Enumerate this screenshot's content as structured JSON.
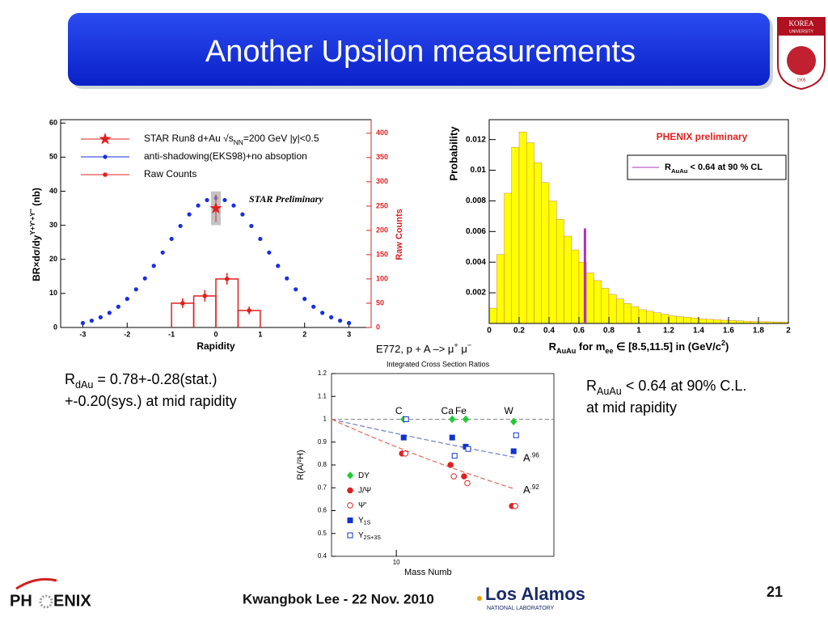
{
  "header": {
    "title": "Another Upsilon measurements"
  },
  "korea_logo": {
    "name": "KOREA",
    "subtitle": "UNIVERSITY",
    "year": "1905"
  },
  "star_plot": {
    "legend": {
      "star": {
        "base": "STAR Run8 d+Au √s",
        "sub": "NN",
        "rest": "=200 GeV  |y|<0.5"
      },
      "model": "anti-shadowing(EKS98)+no absoption",
      "raw": "Raw Counts"
    },
    "annotation": "STAR Preliminary",
    "xlabel": "Rapidity",
    "ylabel": {
      "base": "BR×dσ/dy",
      "sup": "Υ+Υ'+Υ''",
      "rest": " (nb)"
    },
    "y2label": "Raw Counts",
    "xlim": [
      -3.5,
      3.5
    ],
    "ylim": [
      0,
      61
    ],
    "y2lim": [
      0,
      428
    ],
    "xticks": [
      -3,
      -2,
      -1,
      0,
      1,
      2,
      3
    ],
    "yticks": [
      0,
      10,
      20,
      30,
      40,
      50,
      60
    ],
    "y2ticks": [
      0,
      50,
      100,
      150,
      200,
      250,
      300,
      350,
      400
    ],
    "model": {
      "color": "#1a2ee0",
      "x": [
        -3,
        -2.8,
        -2.6,
        -2.4,
        -2.2,
        -2,
        -1.8,
        -1.6,
        -1.4,
        -1.2,
        -1,
        -0.8,
        -0.6,
        -0.4,
        -0.2,
        0,
        0.2,
        0.4,
        0.6,
        0.8,
        1,
        1.2,
        1.4,
        1.6,
        1.8,
        2,
        2.2,
        2.4,
        2.6,
        2.8,
        3
      ],
      "values": [
        1.3,
        2.0,
        3.0,
        4.3,
        6.1,
        8.4,
        11.2,
        14.4,
        18.1,
        22.0,
        26.0,
        29.8,
        33.2,
        35.8,
        37.4,
        38,
        37.4,
        35.8,
        33.2,
        29.8,
        26.0,
        22.0,
        18.1,
        14.4,
        11.2,
        8.4,
        6.1,
        4.3,
        3.0,
        2.0,
        1.3
      ]
    },
    "raw_counts": {
      "color": "#e02020",
      "bins": [
        -1,
        -0.5,
        0,
        0.5,
        1
      ],
      "counts": [
        50,
        65,
        100,
        35
      ],
      "errors": [
        10,
        12,
        12,
        8
      ]
    },
    "star_point": {
      "x": 0,
      "value": 35,
      "error": 4
    }
  },
  "phenix_plot": {
    "title": "PHENIX preliminary",
    "legend": {
      "base": "R",
      "sub": "AuAu",
      "rest": " < 0.64 at 90 % CL"
    },
    "ylabel": "Probability",
    "xlabel": {
      "a": "R",
      "a_sub": "AuAu",
      "b": " for m",
      "b_sub": "ee",
      "c": " ∈ [8.5,11.5] in (GeV/c",
      "c_sup": "2",
      "d": ")"
    },
    "xlim": [
      0,
      2
    ],
    "ylim": [
      0,
      0.0133
    ],
    "xticks": [
      0,
      0.2,
      0.4,
      0.6,
      0.8,
      1,
      1.2,
      1.4,
      1.6,
      1.8,
      2
    ],
    "yticks": [
      0.002,
      0.004,
      0.006,
      0.008,
      0.01,
      0.012
    ],
    "color": "#ffff00",
    "bins": [
      0,
      0.05,
      0.1,
      0.15,
      0.2,
      0.25,
      0.3,
      0.35,
      0.4,
      0.45,
      0.5,
      0.55,
      0.6,
      0.65,
      0.7,
      0.75,
      0.8,
      0.85,
      0.9,
      0.95,
      1,
      1.05,
      1.1,
      1.15,
      1.2,
      1.25,
      1.3,
      1.35,
      1.4,
      1.45,
      1.5,
      1.55,
      1.6,
      1.65,
      1.7,
      1.75,
      1.8,
      1.85,
      1.9,
      1.95,
      2
    ],
    "counts": [
      0.001,
      0.0045,
      0.0085,
      0.0115,
      0.0125,
      0.0118,
      0.0105,
      0.0092,
      0.008,
      0.0068,
      0.0057,
      0.0048,
      0.004,
      0.0033,
      0.0028,
      0.0023,
      0.0019,
      0.0016,
      0.0013,
      0.0011,
      0.0009,
      0.0008,
      0.0007,
      0.0006,
      0.0005,
      0.00045,
      0.0004,
      0.00035,
      0.0003,
      0.00027,
      0.00024,
      0.00021,
      0.00019,
      0.00017,
      0.00015,
      0.00013,
      0.00012,
      0.00011,
      0.0001,
      9e-05
    ],
    "limit": {
      "x": 0.64,
      "height": 0.0062,
      "color": "#b030c0"
    }
  },
  "e772_plot": {
    "title": {
      "a": "E772,  p + A –> μ",
      "s1": "+",
      "b": " μ",
      "s2": "−"
    },
    "subtitle": "Integrated Cross Section Ratios",
    "ylabel": "R(A/²H)",
    "xlabel": "Mass Numb",
    "xlim": [
      2,
      500
    ],
    "log_x": true,
    "ylim": [
      0.4,
      1.2
    ],
    "yticks": [
      0.4,
      0.5,
      0.6,
      0.7,
      0.8,
      0.9,
      1,
      1.1,
      1.2
    ],
    "xticks": [
      10
    ],
    "reference": 1,
    "elements": [
      {
        "label": "C",
        "A": 12
      },
      {
        "label": "Ca",
        "A": 40
      },
      {
        "label": "Fe",
        "A": 56
      },
      {
        "label": "W",
        "A": 184
      }
    ],
    "series": [
      {
        "name": "DY",
        "color": "#22cc33",
        "marker": "diamond",
        "filled": true,
        "x": [
          12,
          40,
          56,
          184
        ],
        "values": [
          1,
          1,
          1,
          0.99
        ]
      },
      {
        "name": "J/Ψ",
        "color": "#dd2222",
        "marker": "circle",
        "filled": true,
        "x": [
          12,
          40,
          56,
          184
        ],
        "values": [
          0.85,
          0.8,
          0.75,
          0.62
        ]
      },
      {
        "name": "Ψ'",
        "color": "#dd2222",
        "marker": "circle",
        "filled": false,
        "x": [
          12,
          40,
          56,
          184
        ],
        "values": [
          0.85,
          0.75,
          0.72,
          0.62
        ]
      },
      {
        "name": "Υ",
        "name_sub": "1S",
        "color": "#1133cc",
        "marker": "square",
        "filled": true,
        "x": [
          12,
          40,
          56,
          184
        ],
        "values": [
          0.92,
          0.92,
          0.88,
          0.86
        ]
      },
      {
        "name": "Υ",
        "name_sub": "2S+3S",
        "color": "#1133cc",
        "marker": "square",
        "filled": false,
        "x": [
          12,
          40,
          56,
          184
        ],
        "values": [
          1.0,
          0.84,
          0.87,
          0.93
        ]
      }
    ],
    "fits": [
      {
        "exponent": 0.96,
        "base": "A",
        "label": ".96",
        "color": "#7788cc"
      },
      {
        "exponent": 0.92,
        "base": "A",
        "label": ".92",
        "color": "#dd7766"
      }
    ]
  },
  "notes": {
    "left": {
      "base": "R",
      "sub": "dAu",
      "rest": " = 0.78+-0.28(stat.)",
      "line2": "+-0.20(sys.) at mid rapidity"
    },
    "right": {
      "base": "R",
      "sub": "AuAu",
      "rest": " < 0.64 at 90% C.L.",
      "line2": "at mid rapidity"
    }
  },
  "footer": {
    "phenix_a": "PH",
    "phenix_b": "ENIX",
    "author": "Kwangbok Lee - 22 Nov. 2010",
    "lanl": "Los Alamos",
    "lanl_sub": "NATIONAL LABORATORY",
    "page": "21"
  }
}
